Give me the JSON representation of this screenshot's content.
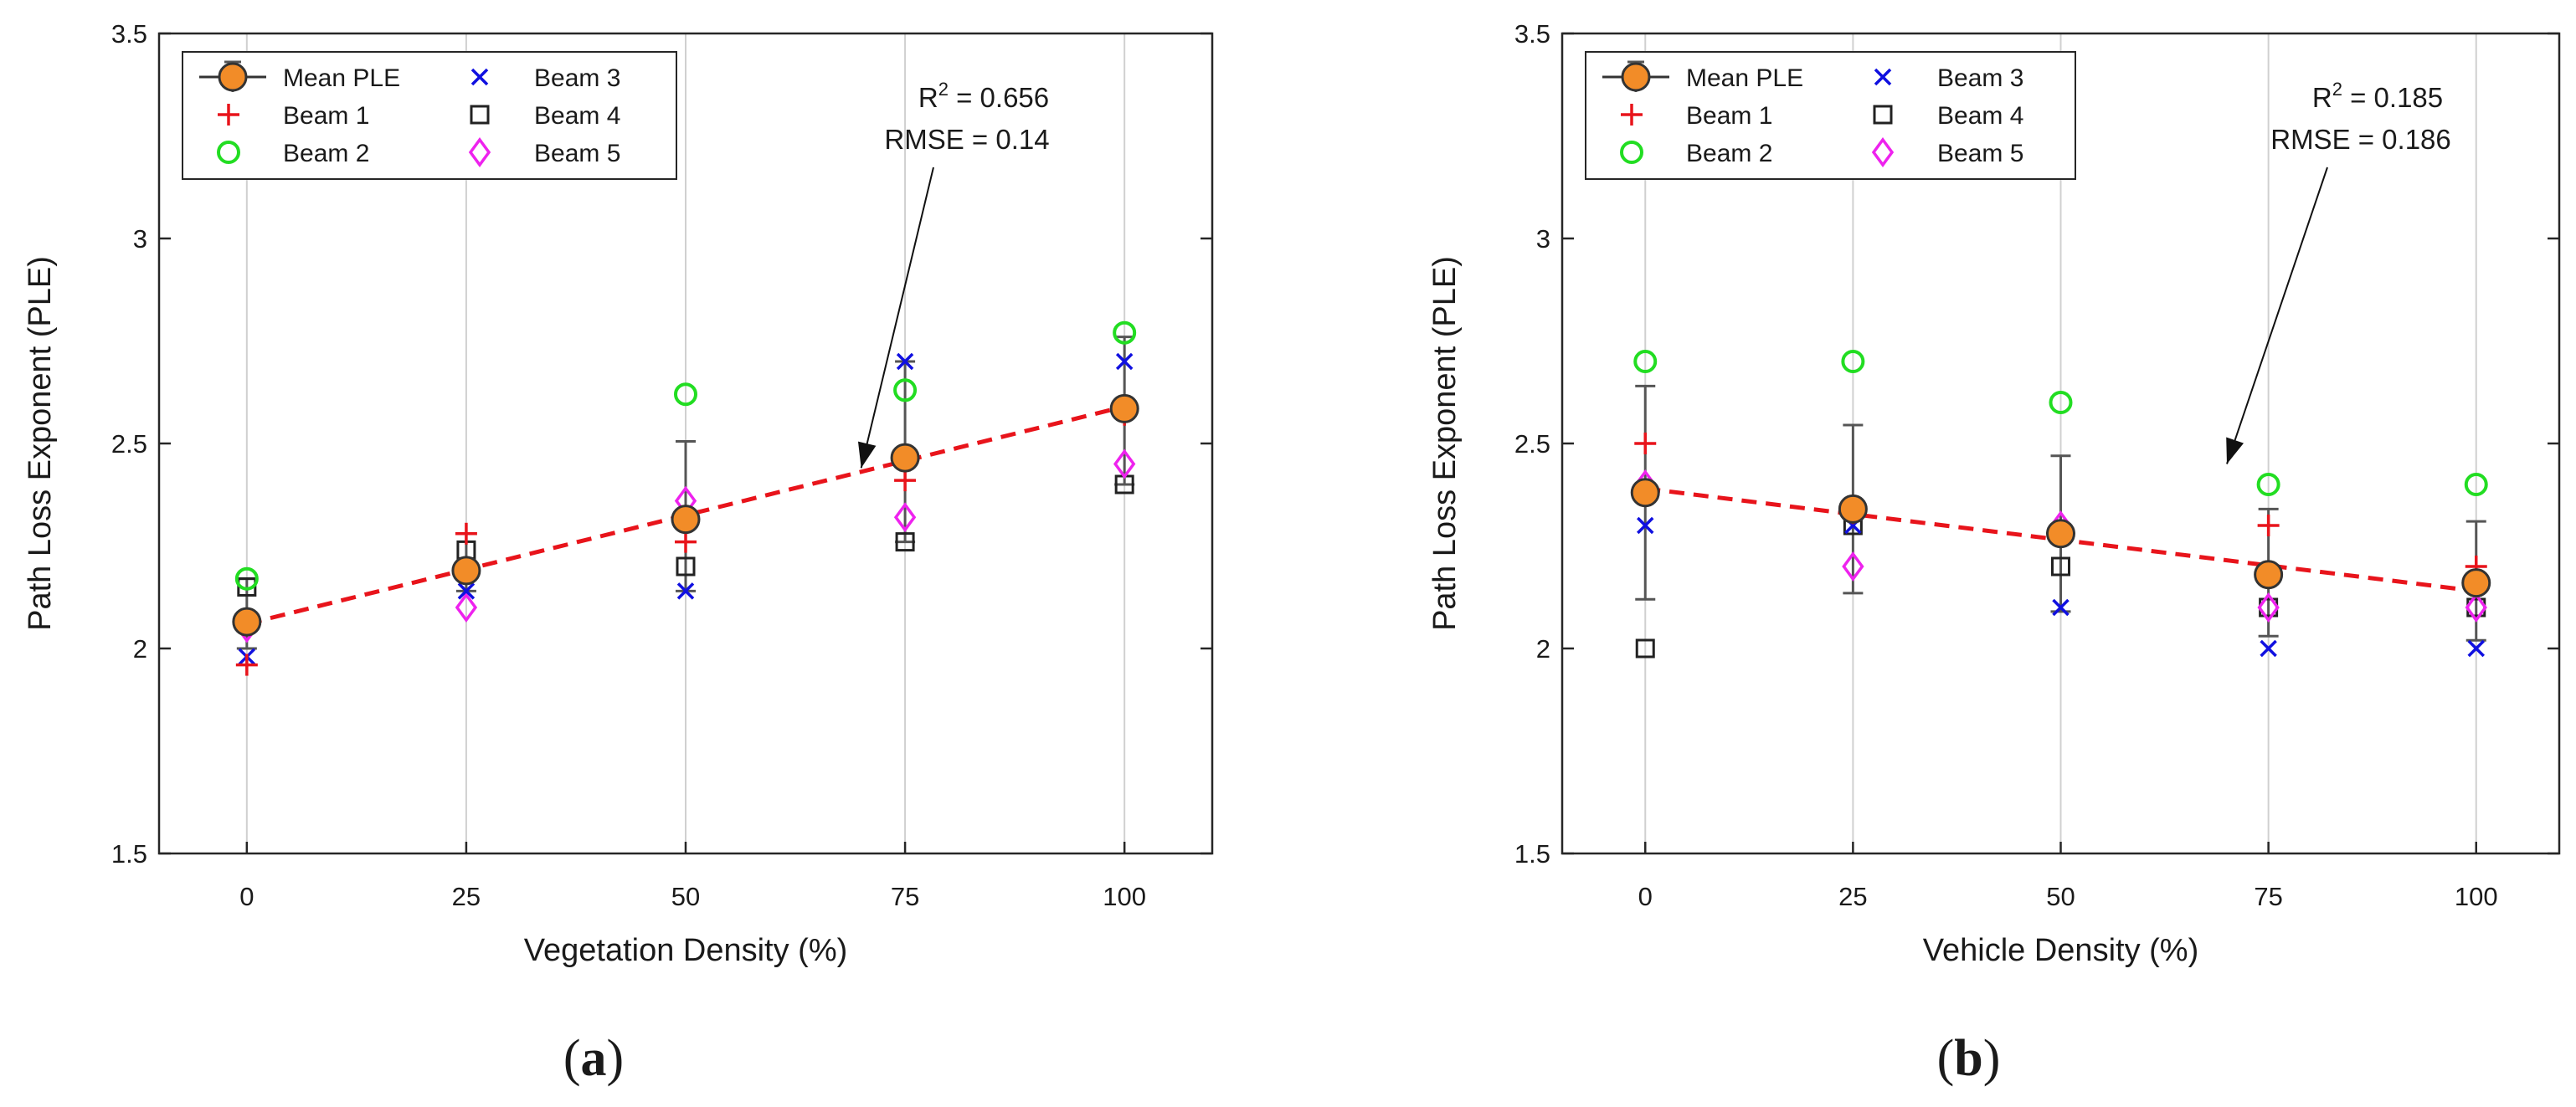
{
  "chart_data": [
    {
      "type": "scatter",
      "panel_label": "a",
      "xlabel": "Vegetation Density (%)",
      "ylabel": "Path Loss Exponent (PLE)",
      "xlim": [
        -10,
        110
      ],
      "ylim": [
        1.5,
        3.5
      ],
      "xticks": [
        "0",
        "25",
        "50",
        "75",
        "100"
      ],
      "yticks": [
        "1.5",
        "2",
        "2.5",
        "3",
        "3.5"
      ],
      "grid": "vertical",
      "legend_position": "top-left",
      "x": [
        0,
        25,
        50,
        75,
        100
      ],
      "series": [
        {
          "name": "Mean PLE",
          "marker": "circle-errorbar",
          "color": "#f28c28",
          "values": [
            2.065,
            2.19,
            2.315,
            2.465,
            2.585
          ],
          "err_low": [
            2.0,
            2.14,
            2.14,
            2.26,
            2.4
          ],
          "err_high": [
            2.17,
            2.28,
            2.505,
            2.7,
            2.76
          ]
        },
        {
          "name": "Beam 1",
          "marker": "plus",
          "color": "#e8141b",
          "values": [
            1.96,
            2.28,
            2.26,
            2.41,
            2.57
          ]
        },
        {
          "name": "Beam 2",
          "marker": "circle-open",
          "color": "#22dd22",
          "values": [
            2.17,
            2.19,
            2.62,
            2.63,
            2.77
          ]
        },
        {
          "name": "Beam 3",
          "marker": "x",
          "color": "#1010e0",
          "values": [
            1.98,
            2.14,
            2.14,
            2.7,
            2.7
          ]
        },
        {
          "name": "Beam 4",
          "marker": "square-open",
          "color": "#222222",
          "values": [
            2.15,
            2.24,
            2.2,
            2.26,
            2.4
          ]
        },
        {
          "name": "Beam 5",
          "marker": "diamond-open",
          "color": "#ee22ee",
          "values": [
            2.05,
            2.1,
            2.36,
            2.32,
            2.45
          ]
        }
      ],
      "fit": {
        "x": [
          0,
          100
        ],
        "y": [
          2.06,
          2.59
        ],
        "color": "#e8141b"
      },
      "annotation": {
        "r2_prefix": "R",
        "r2_sup": "2",
        "r2_value": " = 0.656",
        "rmse": "RMSE = 0.14",
        "arrow_to": [
          70,
          2.44
        ]
      }
    },
    {
      "type": "scatter",
      "panel_label": "b",
      "xlabel": "Vehicle Density (%)",
      "ylabel": "Path Loss Exponent (PLE)",
      "xlim": [
        -10,
        110
      ],
      "ylim": [
        1.5,
        3.5
      ],
      "xticks": [
        "0",
        "25",
        "50",
        "75",
        "100"
      ],
      "yticks": [
        "1.5",
        "2",
        "2.5",
        "3",
        "3.5"
      ],
      "grid": "vertical",
      "legend_position": "top-left",
      "x": [
        0,
        25,
        50,
        75,
        100
      ],
      "series": [
        {
          "name": "Mean PLE",
          "marker": "circle-errorbar",
          "color": "#f28c28",
          "values": [
            2.38,
            2.34,
            2.28,
            2.18,
            2.16
          ],
          "err_low": [
            2.12,
            2.135,
            2.09,
            2.03,
            2.02
          ],
          "err_high": [
            2.64,
            2.545,
            2.47,
            2.34,
            2.31
          ]
        },
        {
          "name": "Beam 1",
          "marker": "plus",
          "color": "#e8141b",
          "values": [
            2.5,
            2.33,
            2.28,
            2.3,
            2.2
          ]
        },
        {
          "name": "Beam 2",
          "marker": "circle-open",
          "color": "#22dd22",
          "values": [
            2.7,
            2.7,
            2.6,
            2.4,
            2.4
          ]
        },
        {
          "name": "Beam 3",
          "marker": "x",
          "color": "#1010e0",
          "values": [
            2.3,
            2.3,
            2.1,
            2.0,
            2.0
          ]
        },
        {
          "name": "Beam 4",
          "marker": "square-open",
          "color": "#222222",
          "values": [
            2.0,
            2.3,
            2.2,
            2.1,
            2.1
          ]
        },
        {
          "name": "Beam 5",
          "marker": "diamond-open",
          "color": "#ee22ee",
          "values": [
            2.4,
            2.2,
            2.3,
            2.1,
            2.1
          ]
        }
      ],
      "fit": {
        "x": [
          0,
          100
        ],
        "y": [
          2.39,
          2.14
        ],
        "color": "#e8141b"
      },
      "annotation": {
        "r2_prefix": "R",
        "r2_sup": "2",
        "r2_value": " = 0.185",
        "rmse": "RMSE = 0.186",
        "arrow_to": [
          70,
          2.45
        ]
      }
    }
  ]
}
